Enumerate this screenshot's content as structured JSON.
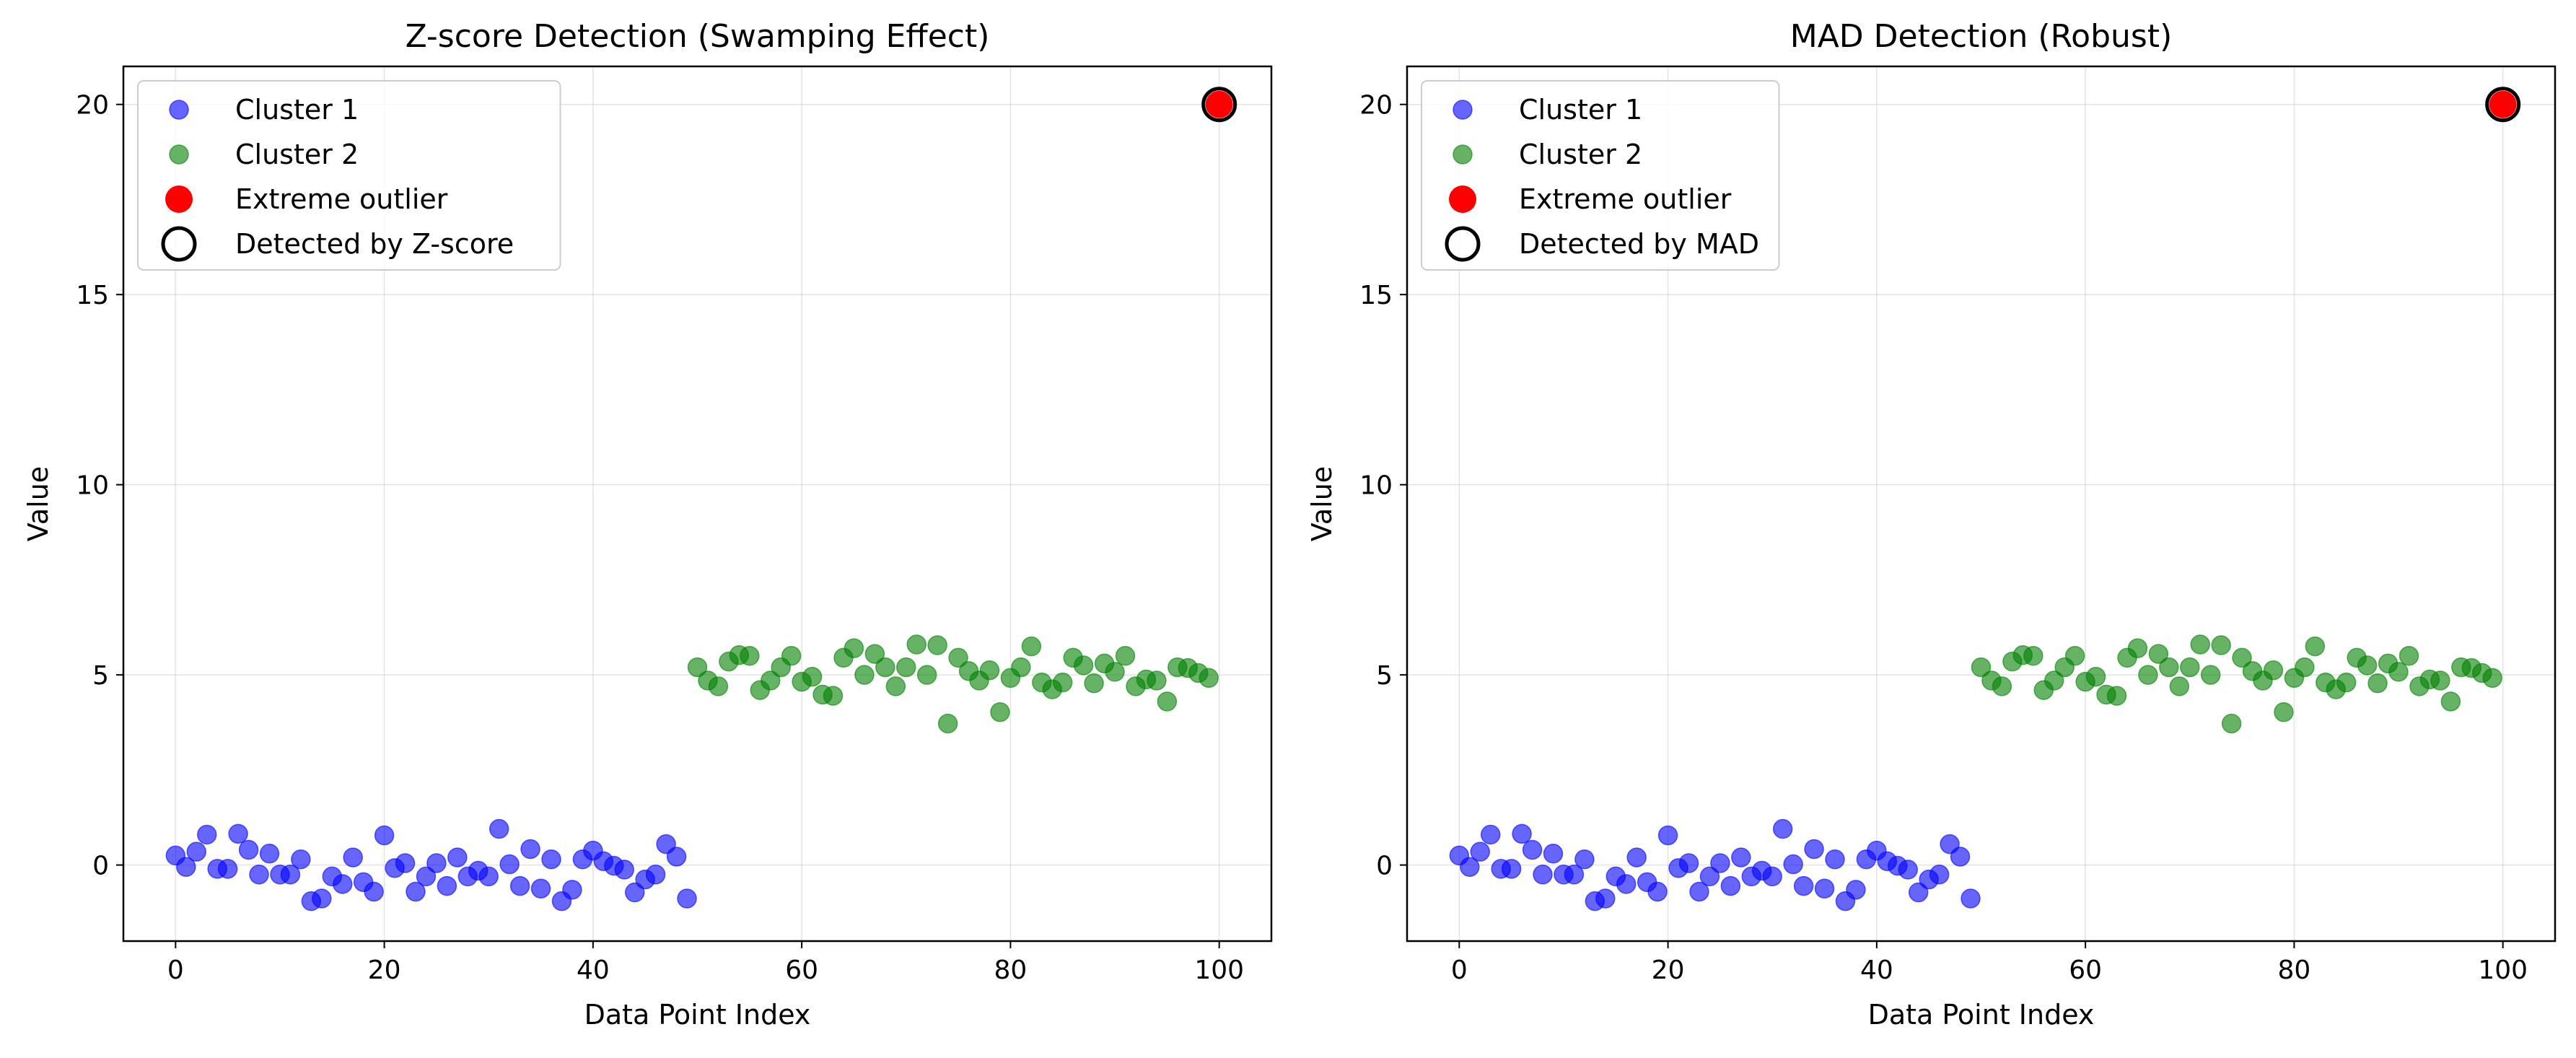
{
  "chart_data": [
    {
      "type": "scatter",
      "title": "Z-score Detection (Swamping Effect)",
      "xlabel": "Data Point Index",
      "ylabel": "Value",
      "xlim": [
        -5,
        105
      ],
      "ylim": [
        -2,
        21
      ],
      "xticks": [
        0,
        20,
        40,
        60,
        80,
        100
      ],
      "yticks": [
        0,
        5,
        10,
        15,
        20
      ],
      "grid": true,
      "legend_position": "upper-left",
      "series": [
        {
          "name": "Cluster 1",
          "color": "#0000ff",
          "marker": "circle",
          "x": [
            0,
            1,
            2,
            3,
            4,
            5,
            6,
            7,
            8,
            9,
            10,
            11,
            12,
            13,
            14,
            15,
            16,
            17,
            18,
            19,
            20,
            21,
            22,
            23,
            24,
            25,
            26,
            27,
            28,
            29,
            30,
            31,
            32,
            33,
            34,
            35,
            36,
            37,
            38,
            39,
            40,
            41,
            42,
            43,
            44,
            45,
            46,
            47,
            48,
            49
          ],
          "y": [
            0.25,
            -0.05,
            0.35,
            0.8,
            -0.1,
            -0.1,
            0.82,
            0.4,
            -0.25,
            0.3,
            -0.25,
            -0.25,
            0.15,
            -0.95,
            -0.88,
            -0.3,
            -0.5,
            0.2,
            -0.45,
            -0.7,
            0.78,
            -0.08,
            0.05,
            -0.7,
            -0.3,
            0.05,
            -0.55,
            0.2,
            -0.3,
            -0.15,
            -0.3,
            0.95,
            0.02,
            -0.55,
            0.42,
            -0.62,
            0.15,
            -0.95,
            -0.65,
            0.15,
            0.38,
            0.1,
            -0.02,
            -0.12,
            -0.72,
            -0.38,
            -0.25,
            0.55,
            0.22,
            -0.88
          ]
        },
        {
          "name": "Cluster 2",
          "color": "#008000",
          "marker": "circle",
          "x": [
            50,
            51,
            52,
            53,
            54,
            55,
            56,
            57,
            58,
            59,
            60,
            61,
            62,
            63,
            64,
            65,
            66,
            67,
            68,
            69,
            70,
            71,
            72,
            73,
            74,
            75,
            76,
            77,
            78,
            79,
            80,
            81,
            82,
            83,
            84,
            85,
            86,
            87,
            88,
            89,
            90,
            91,
            92,
            93,
            94,
            95,
            96,
            97,
            98,
            99
          ],
          "y": [
            5.2,
            4.85,
            4.7,
            5.35,
            5.52,
            5.5,
            4.6,
            4.85,
            5.2,
            5.5,
            4.82,
            4.95,
            4.48,
            4.45,
            5.45,
            5.7,
            5.0,
            5.55,
            5.2,
            4.7,
            5.2,
            5.8,
            5.0,
            5.78,
            3.72,
            5.45,
            5.1,
            4.85,
            5.12,
            4.02,
            4.92,
            5.2,
            5.75,
            4.8,
            4.62,
            4.8,
            5.45,
            5.25,
            4.78,
            5.3,
            5.08,
            5.5,
            4.7,
            4.88,
            4.85,
            4.3,
            5.2,
            5.18,
            5.05,
            4.92
          ]
        },
        {
          "name": "Extreme outlier",
          "color": "#ff0000",
          "marker": "circle",
          "x": [
            100
          ],
          "y": [
            20
          ]
        },
        {
          "name": "Detected by Z-score",
          "color": "#000000",
          "marker": "open-circle",
          "x": [
            100
          ],
          "y": [
            20
          ]
        }
      ]
    },
    {
      "type": "scatter",
      "title": "MAD Detection (Robust)",
      "xlabel": "Data Point Index",
      "ylabel": "Value",
      "xlim": [
        -5,
        105
      ],
      "ylim": [
        -2,
        21
      ],
      "xticks": [
        0,
        20,
        40,
        60,
        80,
        100
      ],
      "yticks": [
        0,
        5,
        10,
        15,
        20
      ],
      "grid": true,
      "legend_position": "upper-left",
      "series": [
        {
          "name": "Cluster 1",
          "color": "#0000ff",
          "marker": "circle",
          "x": [
            0,
            1,
            2,
            3,
            4,
            5,
            6,
            7,
            8,
            9,
            10,
            11,
            12,
            13,
            14,
            15,
            16,
            17,
            18,
            19,
            20,
            21,
            22,
            23,
            24,
            25,
            26,
            27,
            28,
            29,
            30,
            31,
            32,
            33,
            34,
            35,
            36,
            37,
            38,
            39,
            40,
            41,
            42,
            43,
            44,
            45,
            46,
            47,
            48,
            49
          ],
          "y": [
            0.25,
            -0.05,
            0.35,
            0.8,
            -0.1,
            -0.1,
            0.82,
            0.4,
            -0.25,
            0.3,
            -0.25,
            -0.25,
            0.15,
            -0.95,
            -0.88,
            -0.3,
            -0.5,
            0.2,
            -0.45,
            -0.7,
            0.78,
            -0.08,
            0.05,
            -0.7,
            -0.3,
            0.05,
            -0.55,
            0.2,
            -0.3,
            -0.15,
            -0.3,
            0.95,
            0.02,
            -0.55,
            0.42,
            -0.62,
            0.15,
            -0.95,
            -0.65,
            0.15,
            0.38,
            0.1,
            -0.02,
            -0.12,
            -0.72,
            -0.38,
            -0.25,
            0.55,
            0.22,
            -0.88
          ]
        },
        {
          "name": "Cluster 2",
          "color": "#008000",
          "marker": "circle",
          "x": [
            50,
            51,
            52,
            53,
            54,
            55,
            56,
            57,
            58,
            59,
            60,
            61,
            62,
            63,
            64,
            65,
            66,
            67,
            68,
            69,
            70,
            71,
            72,
            73,
            74,
            75,
            76,
            77,
            78,
            79,
            80,
            81,
            82,
            83,
            84,
            85,
            86,
            87,
            88,
            89,
            90,
            91,
            92,
            93,
            94,
            95,
            96,
            97,
            98,
            99
          ],
          "y": [
            5.2,
            4.85,
            4.7,
            5.35,
            5.52,
            5.5,
            4.6,
            4.85,
            5.2,
            5.5,
            4.82,
            4.95,
            4.48,
            4.45,
            5.45,
            5.7,
            5.0,
            5.55,
            5.2,
            4.7,
            5.2,
            5.8,
            5.0,
            5.78,
            3.72,
            5.45,
            5.1,
            4.85,
            5.12,
            4.02,
            4.92,
            5.2,
            5.75,
            4.8,
            4.62,
            4.8,
            5.45,
            5.25,
            4.78,
            5.3,
            5.08,
            5.5,
            4.7,
            4.88,
            4.85,
            4.3,
            5.2,
            5.18,
            5.05,
            4.92
          ]
        },
        {
          "name": "Extreme outlier",
          "color": "#ff0000",
          "marker": "circle",
          "x": [
            100
          ],
          "y": [
            20
          ]
        },
        {
          "name": "Detected by MAD",
          "color": "#000000",
          "marker": "open-circle",
          "x": [
            100
          ],
          "y": [
            20
          ]
        }
      ]
    }
  ]
}
